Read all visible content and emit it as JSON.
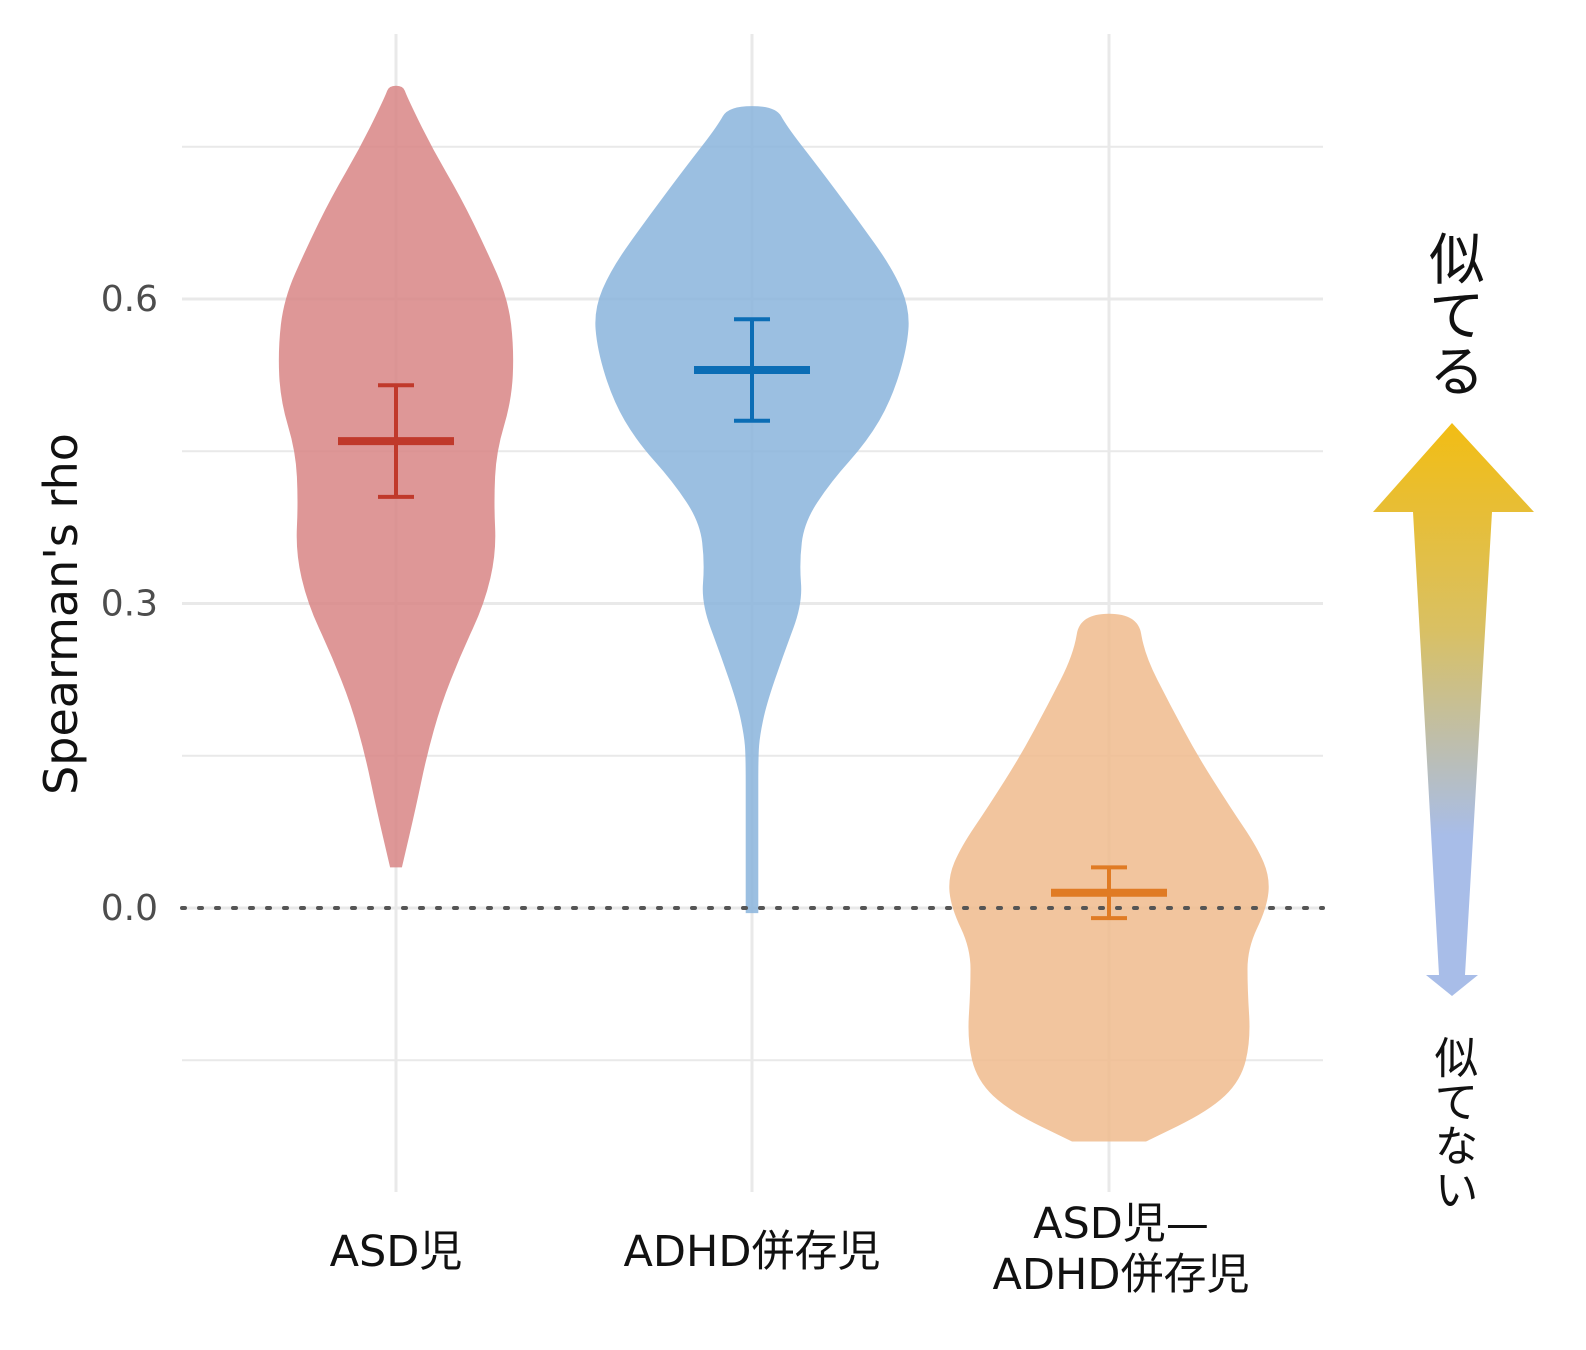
{
  "chart_data": {
    "type": "violin",
    "ylabel": "Spearman's rho",
    "ylim": [
      -0.4,
      0.8
    ],
    "yticks": [
      0.0,
      0.3,
      0.6
    ],
    "ytick_labels": [
      "0.0",
      "0.3",
      "0.6"
    ],
    "reference_line": 0.0,
    "grid": true,
    "categories": [
      "ASD児",
      "ADHD併存児",
      "ASD児—ADHD併存児"
    ],
    "category_label_lines": [
      [
        "ASD児"
      ],
      [
        "ADHD併存児"
      ],
      [
        "ASD児—",
        "ADHD併存児"
      ]
    ],
    "series": [
      {
        "category": "ASD児",
        "color": "#d98686",
        "error_color": "#c0392b",
        "mean": 0.46,
        "ci": [
          0.405,
          0.515
        ],
        "min": 0.04,
        "max": 0.81,
        "density": [
          [
            0.04,
            0.05
          ],
          [
            0.1,
            0.17
          ],
          [
            0.15,
            0.26
          ],
          [
            0.2,
            0.38
          ],
          [
            0.25,
            0.55
          ],
          [
            0.3,
            0.75
          ],
          [
            0.35,
            0.85
          ],
          [
            0.4,
            0.83
          ],
          [
            0.45,
            0.85
          ],
          [
            0.5,
            0.98
          ],
          [
            0.55,
            1.0
          ],
          [
            0.6,
            0.95
          ],
          [
            0.65,
            0.76
          ],
          [
            0.7,
            0.55
          ],
          [
            0.75,
            0.3
          ],
          [
            0.8,
            0.09
          ],
          [
            0.81,
            0.06
          ]
        ]
      },
      {
        "category": "ADHD併存児",
        "color": "#8ab4dc",
        "error_color": "#0b6db5",
        "mean": 0.53,
        "ci": [
          0.48,
          0.58
        ],
        "min": -0.005,
        "max": 0.79,
        "density": [
          [
            -0.005,
            0.04
          ],
          [
            0.05,
            0.04
          ],
          [
            0.1,
            0.04
          ],
          [
            0.15,
            0.04
          ],
          [
            0.17,
            0.05
          ],
          [
            0.2,
            0.09
          ],
          [
            0.25,
            0.2
          ],
          [
            0.3,
            0.32
          ],
          [
            0.34,
            0.3
          ],
          [
            0.38,
            0.33
          ],
          [
            0.42,
            0.5
          ],
          [
            0.46,
            0.73
          ],
          [
            0.5,
            0.88
          ],
          [
            0.55,
            0.98
          ],
          [
            0.59,
            1.0
          ],
          [
            0.63,
            0.89
          ],
          [
            0.68,
            0.66
          ],
          [
            0.73,
            0.42
          ],
          [
            0.77,
            0.22
          ],
          [
            0.79,
            0.15
          ]
        ]
      },
      {
        "category": "ASD児—ADHD併存児",
        "color": "#f0bc8e",
        "error_color": "#e07b24",
        "mean": 0.015,
        "ci": [
          -0.01,
          0.04
        ],
        "min": -0.23,
        "max": 0.29,
        "density": [
          [
            -0.23,
            0.23
          ],
          [
            -0.2,
            0.62
          ],
          [
            -0.17,
            0.82
          ],
          [
            -0.13,
            0.88
          ],
          [
            -0.08,
            0.86
          ],
          [
            -0.04,
            0.86
          ],
          [
            0.0,
            0.98
          ],
          [
            0.03,
            1.0
          ],
          [
            0.06,
            0.92
          ],
          [
            0.1,
            0.75
          ],
          [
            0.15,
            0.55
          ],
          [
            0.2,
            0.38
          ],
          [
            0.25,
            0.22
          ],
          [
            0.29,
            0.18
          ]
        ]
      }
    ],
    "side_labels": {
      "top": "似てる",
      "bottom": "似てない"
    }
  },
  "colors": {
    "arrow_top": "#f2bd14",
    "arrow_bottom": "#a8bde8",
    "grid": "#e9e9e9",
    "zero_line": "#555555"
  }
}
